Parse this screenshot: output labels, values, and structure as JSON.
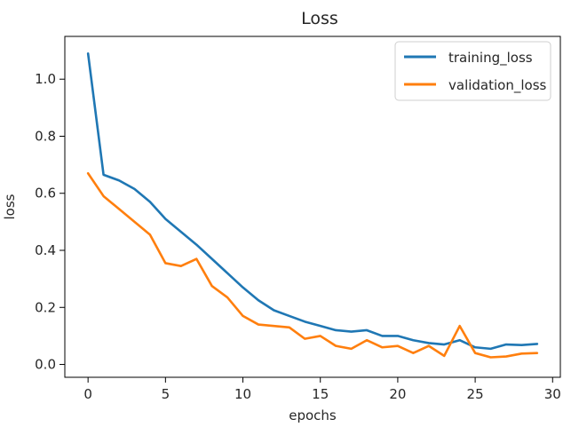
{
  "chart_data": {
    "type": "line",
    "title": "Loss",
    "xlabel": "epochs",
    "ylabel": "loss",
    "xlim": [
      -1.5,
      30.5
    ],
    "ylim": [
      -0.045,
      1.15
    ],
    "xticks": [
      0,
      5,
      10,
      15,
      20,
      25,
      30
    ],
    "yticks": [
      0.0,
      0.2,
      0.4,
      0.6,
      0.8,
      1.0
    ],
    "x": [
      0,
      1,
      2,
      3,
      4,
      5,
      6,
      7,
      8,
      9,
      10,
      11,
      12,
      13,
      14,
      15,
      16,
      17,
      18,
      19,
      20,
      21,
      22,
      23,
      24,
      25,
      26,
      27,
      28,
      29
    ],
    "series": [
      {
        "name": "training_loss",
        "color": "#1f77b4",
        "values": [
          1.09,
          0.665,
          0.645,
          0.615,
          0.57,
          0.51,
          0.465,
          0.42,
          0.37,
          0.32,
          0.27,
          0.225,
          0.19,
          0.17,
          0.15,
          0.135,
          0.12,
          0.115,
          0.12,
          0.1,
          0.1,
          0.085,
          0.075,
          0.07,
          0.085,
          0.06,
          0.055,
          0.07,
          0.068,
          0.072
        ]
      },
      {
        "name": "validation_loss",
        "color": "#ff7f0e",
        "values": [
          0.67,
          0.59,
          0.545,
          0.5,
          0.455,
          0.355,
          0.345,
          0.37,
          0.275,
          0.235,
          0.17,
          0.14,
          0.135,
          0.13,
          0.09,
          0.1,
          0.065,
          0.055,
          0.085,
          0.06,
          0.065,
          0.04,
          0.065,
          0.03,
          0.135,
          0.04,
          0.025,
          0.028,
          0.038,
          0.04
        ]
      }
    ],
    "legend": "top-right",
    "grid": false
  }
}
